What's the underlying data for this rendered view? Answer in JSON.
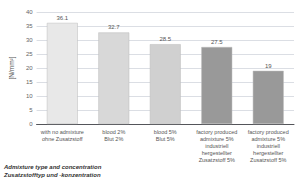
{
  "chart_data": {
    "type": "bar",
    "categories": [
      "with no admixture\nohne Zusatzstoff",
      "blood 2%\nBlut 2%",
      "blood 5%\nBlut 5%",
      "factory produced\nadmixture 5%\nindustriell\nhergestellter\nZusatzstoff 5%",
      "factory produced\nadmixture 5%\nindustriell\nhergestellter\nZusatzstoff 5%"
    ],
    "values": [
      36.1,
      32.7,
      28.5,
      27.5,
      19
    ],
    "colors": [
      "#e8e8e8",
      "#d8d8d8",
      "#d0d0d0",
      "#999999",
      "#999999"
    ],
    "ylabel": "[N/mm²]",
    "xlabel": "Admixture type and concentration\nZusatzstofftyp und -konzentration",
    "ylim": [
      0,
      40
    ],
    "yticks": [
      0,
      5,
      10,
      15,
      20,
      25,
      30,
      35,
      40
    ],
    "grid": true,
    "data_labels": true
  }
}
